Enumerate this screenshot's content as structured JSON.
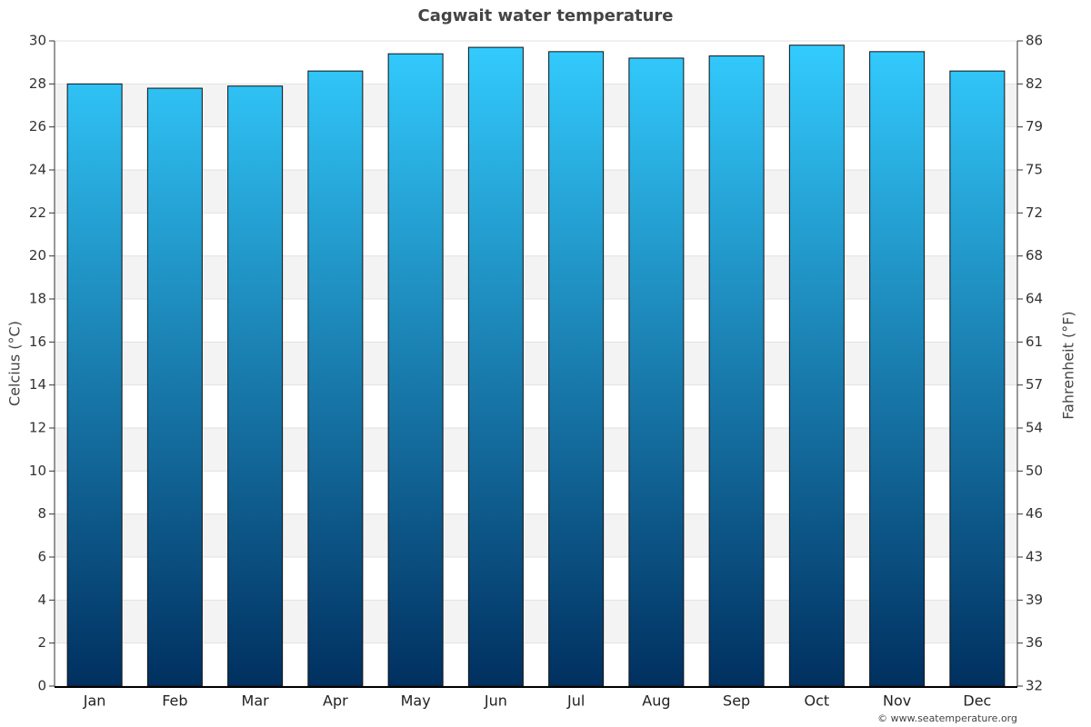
{
  "chart_data": {
    "type": "bar",
    "title": "Cagwait water temperature",
    "y_label": "Celcius (°C)",
    "y2_label": "Fahrenheit (°F)",
    "credit": "© www.seatemperature.org",
    "categories": [
      "Jan",
      "Feb",
      "Mar",
      "Apr",
      "May",
      "Jun",
      "Jul",
      "Aug",
      "Sep",
      "Oct",
      "Nov",
      "Dec"
    ],
    "values": [
      28.0,
      27.8,
      27.9,
      28.6,
      29.4,
      29.7,
      29.5,
      29.2,
      29.3,
      29.8,
      29.5,
      28.6
    ],
    "color_top": "#33ccff",
    "color_bottom": "#003060",
    "ylim": [
      0,
      30
    ],
    "yticks": [
      0,
      2,
      4,
      6,
      8,
      10,
      12,
      14,
      16,
      18,
      20,
      22,
      24,
      26,
      28,
      30
    ],
    "y2lim": [
      32,
      86
    ],
    "y2ticks": [
      32,
      {
        "value": 35.6,
        "label": "36"
      },
      {
        "value": 39.2,
        "label": "39"
      },
      {
        "value": 42.8,
        "label": "43"
      },
      {
        "value": 46.4,
        "label": "46"
      },
      50,
      {
        "value": 53.6,
        "label": "54"
      },
      {
        "value": 57.2,
        "label": "57"
      },
      {
        "value": 60.8,
        "label": "61"
      },
      {
        "value": 64.4,
        "label": "64"
      },
      68,
      {
        "value": 71.6,
        "label": "72"
      },
      {
        "value": 75.2,
        "label": "75"
      },
      {
        "value": 78.8,
        "label": "79"
      },
      {
        "value": 82.4,
        "label": "82"
      },
      86
    ],
    "grid": true
  }
}
